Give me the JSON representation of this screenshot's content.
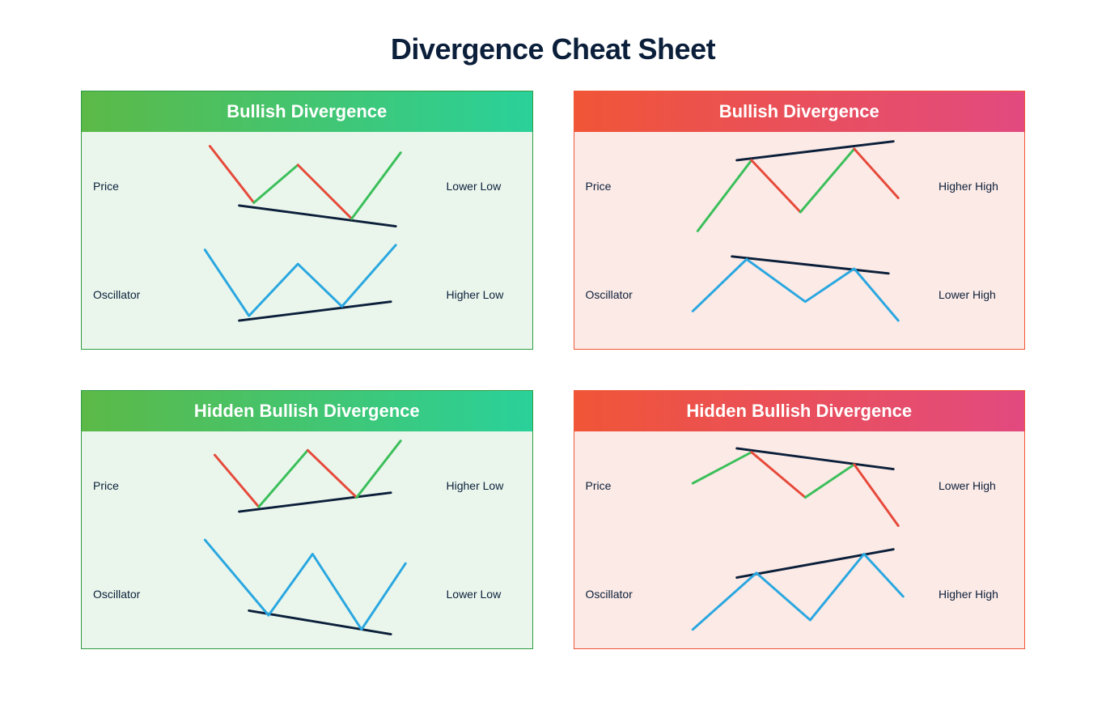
{
  "title": "Divergence Cheat Sheet",
  "label_fontsize": 14,
  "title_fontsize": 36,
  "header_fontsize": 22,
  "colors": {
    "text": "#0b1f3a",
    "trend_line": "#0b1f3a",
    "oscillator": "#2aa7e0",
    "up_segment": "#3bbf5a",
    "down_segment": "#e64a3b",
    "green_border": "#2e9c43",
    "red_border": "#f05537",
    "green_bg": "#eaf6ec",
    "red_bg": "#fceae6",
    "green_grad_start": "#5cb947",
    "green_grad_end": "#2ad19a",
    "red_grad_start": "#f05537",
    "red_grad_end": "#e24a80"
  },
  "line_width": 2.5,
  "panels": [
    {
      "id": "bullish-green",
      "theme": "green",
      "header": "Bullish Divergence",
      "left_top": "Price",
      "left_bottom": "Oscillator",
      "right_top": "Lower Low",
      "right_bottom": "Higher Low",
      "price_points": [
        [
          40,
          15
        ],
        [
          85,
          75
        ],
        [
          130,
          35
        ],
        [
          185,
          92
        ],
        [
          235,
          22
        ]
      ],
      "price_dirs": [
        "down",
        "up",
        "down",
        "up"
      ],
      "price_trend": [
        [
          70,
          78
        ],
        [
          230,
          100
        ]
      ],
      "osc_points": [
        [
          35,
          125
        ],
        [
          80,
          195
        ],
        [
          130,
          140
        ],
        [
          175,
          185
        ],
        [
          230,
          120
        ]
      ],
      "osc_trend": [
        [
          70,
          200
        ],
        [
          225,
          180
        ]
      ]
    },
    {
      "id": "bullish-red",
      "theme": "red",
      "header": "Bullish Divergence",
      "left_top": "Price",
      "left_bottom": "Oscillator",
      "right_top": "Higher High",
      "right_bottom": "Lower High",
      "price_points": [
        [
          35,
          105
        ],
        [
          90,
          30
        ],
        [
          140,
          85
        ],
        [
          195,
          18
        ],
        [
          240,
          70
        ]
      ],
      "price_dirs": [
        "up",
        "down",
        "up",
        "down"
      ],
      "price_trend": [
        [
          75,
          30
        ],
        [
          235,
          10
        ]
      ],
      "osc_points": [
        [
          30,
          190
        ],
        [
          85,
          135
        ],
        [
          145,
          180
        ],
        [
          195,
          145
        ],
        [
          240,
          200
        ]
      ],
      "osc_trend": [
        [
          70,
          132
        ],
        [
          230,
          150
        ]
      ]
    },
    {
      "id": "hidden-bullish-green",
      "theme": "green",
      "header": "Hidden Bullish Divergence",
      "left_top": "Price",
      "left_bottom": "Oscillator",
      "right_top": "Higher Low",
      "right_bottom": "Lower Low",
      "price_points": [
        [
          45,
          25
        ],
        [
          90,
          80
        ],
        [
          140,
          20
        ],
        [
          190,
          70
        ],
        [
          235,
          10
        ]
      ],
      "price_dirs": [
        "down",
        "up",
        "down",
        "up"
      ],
      "price_trend": [
        [
          70,
          85
        ],
        [
          225,
          65
        ]
      ],
      "osc_points": [
        [
          35,
          115
        ],
        [
          100,
          195
        ],
        [
          145,
          130
        ],
        [
          195,
          210
        ],
        [
          240,
          140
        ]
      ],
      "osc_trend": [
        [
          80,
          190
        ],
        [
          225,
          215
        ]
      ]
    },
    {
      "id": "hidden-bullish-red",
      "theme": "red",
      "header": "Hidden Bullish Divergence",
      "left_top": "Price",
      "left_bottom": "Oscillator",
      "right_top": "Lower High",
      "right_bottom": "Higher High",
      "price_points": [
        [
          30,
          55
        ],
        [
          90,
          22
        ],
        [
          145,
          70
        ],
        [
          195,
          35
        ],
        [
          240,
          100
        ]
      ],
      "price_dirs": [
        "up",
        "down",
        "up",
        "down"
      ],
      "price_trend": [
        [
          75,
          18
        ],
        [
          235,
          40
        ]
      ],
      "osc_points": [
        [
          30,
          210
        ],
        [
          95,
          150
        ],
        [
          150,
          200
        ],
        [
          205,
          130
        ],
        [
          245,
          175
        ]
      ],
      "osc_trend": [
        [
          75,
          155
        ],
        [
          235,
          125
        ]
      ]
    }
  ]
}
